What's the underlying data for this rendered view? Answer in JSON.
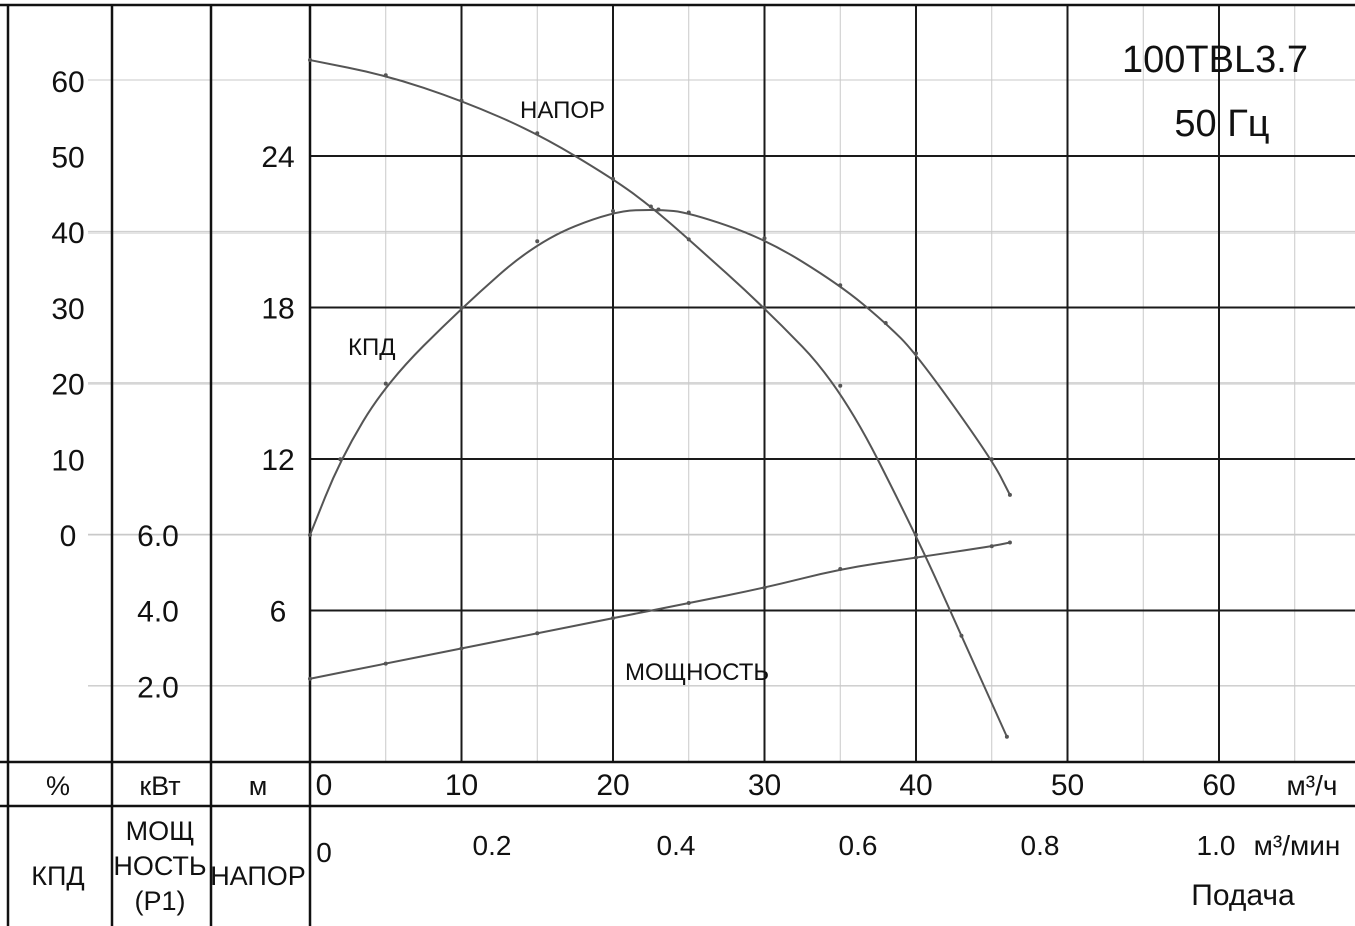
{
  "chart_data": {
    "type": "line",
    "model": "100TBL3.7",
    "frequency": "50 Гц",
    "x": {
      "ticks": [
        0,
        10,
        20,
        30,
        40,
        50,
        60
      ],
      "range": [
        0,
        70
      ],
      "unit": "м³/ч",
      "secondary_ticks": [
        "0",
        "0.2",
        "0.4",
        "0.6",
        "0.8",
        "1.0"
      ],
      "secondary_unit": "м³/мин",
      "label": "Подача"
    },
    "axes": {
      "efficiency": {
        "header": "%",
        "name": "КПД",
        "ticks": [
          60,
          50,
          40,
          30,
          20,
          10,
          0
        ]
      },
      "power": {
        "header": "кВт",
        "name_lines": [
          "МОЩ",
          "НОСТЬ",
          "(P1)"
        ],
        "ticks": [
          "6.0",
          "4.0",
          "2.0"
        ]
      },
      "head": {
        "header": "м",
        "name": "НАПОР",
        "ticks": [
          "24",
          "18",
          "12",
          "6"
        ]
      }
    },
    "series": [
      {
        "name": "НАПОР",
        "axis": "head",
        "points": [
          [
            0,
            27.8
          ],
          [
            5,
            27.2
          ],
          [
            10,
            26.2
          ],
          [
            15,
            24.9
          ],
          [
            20,
            23.1
          ],
          [
            22.5,
            22.0
          ],
          [
            25,
            20.7
          ],
          [
            30,
            18
          ],
          [
            35,
            14.9
          ],
          [
            40,
            9.0
          ],
          [
            43,
            5.0
          ],
          [
            46,
            1.0
          ]
        ]
      },
      {
        "name": "КПД",
        "axis": "efficiency",
        "points": [
          [
            0,
            0
          ],
          [
            2,
            10
          ],
          [
            5,
            20
          ],
          [
            10,
            30
          ],
          [
            15,
            38.8
          ],
          [
            20,
            42.8
          ],
          [
            23,
            43
          ],
          [
            25,
            42.6
          ],
          [
            30,
            39.2
          ],
          [
            35,
            33
          ],
          [
            38,
            28
          ],
          [
            40,
            24
          ],
          [
            45,
            10
          ],
          [
            46.2,
            5.3
          ]
        ]
      },
      {
        "name": "МОЩНОСТЬ",
        "axis": "power",
        "points": [
          [
            0,
            2.2
          ],
          [
            5,
            2.6
          ],
          [
            10,
            3.0
          ],
          [
            15,
            3.4
          ],
          [
            20,
            3.8
          ],
          [
            25,
            4.2
          ],
          [
            30,
            4.6
          ],
          [
            35,
            5.1
          ],
          [
            40,
            5.4
          ],
          [
            45,
            5.7
          ],
          [
            46.2,
            5.8
          ]
        ]
      }
    ]
  }
}
